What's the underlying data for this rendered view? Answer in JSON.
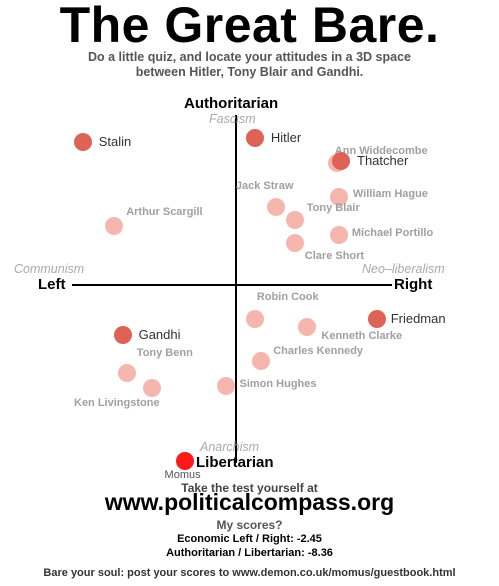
{
  "header": {
    "title": "The Great Bare.",
    "subtitle_line1": "Do a little quiz, and locate your attitudes in a 3D space",
    "subtitle_line2": "between Hitler, Tony Blair and Gandhi."
  },
  "compass": {
    "top": "Authoritarian",
    "top_ideology": "Fascism",
    "bottom": "Libertarian",
    "bottom_ideology": "Anarchism",
    "left": "Left",
    "left_ideology": "Communism",
    "right": "Right",
    "right_ideology": "Neo–liberalism"
  },
  "colors": {
    "strong": "#dc6355",
    "light": "#f4b3a9",
    "self": "#ff1a1a",
    "strong_text": "#333333",
    "light_text": "#a0a0a0"
  },
  "people": [
    {
      "name": "Stalin",
      "x": -7.3,
      "y": 6.8,
      "style": "strong"
    },
    {
      "name": "Hitler",
      "x": 0.9,
      "y": 7.0,
      "style": "strong"
    },
    {
      "name": "Ann Widdecombe",
      "x": 4.8,
      "y": 5.8,
      "style": "light"
    },
    {
      "name": "Thatcher",
      "x": 5.0,
      "y": 5.9,
      "style": "strong"
    },
    {
      "name": "Jack Straw",
      "x": 1.9,
      "y": 3.7,
      "style": "light"
    },
    {
      "name": "William Hague",
      "x": 4.9,
      "y": 4.2,
      "style": "light"
    },
    {
      "name": "Tony Blair",
      "x": 2.8,
      "y": 3.1,
      "style": "light"
    },
    {
      "name": "Arthur Scargill",
      "x": -5.8,
      "y": 2.8,
      "style": "light"
    },
    {
      "name": "Michael Portillo",
      "x": 4.9,
      "y": 2.4,
      "style": "light"
    },
    {
      "name": "Clare Short",
      "x": 2.8,
      "y": 2.0,
      "style": "light"
    },
    {
      "name": "Robin Cook",
      "x": 0.9,
      "y": -1.6,
      "style": "light"
    },
    {
      "name": "Friedman",
      "x": 6.7,
      "y": -1.6,
      "style": "strong"
    },
    {
      "name": "Kenneth Clarke",
      "x": 3.4,
      "y": -2.0,
      "style": "light"
    },
    {
      "name": "Gandhi",
      "x": -5.4,
      "y": -2.4,
      "style": "strong"
    },
    {
      "name": "Charles Kennedy",
      "x": 1.2,
      "y": -3.6,
      "style": "light"
    },
    {
      "name": "Tony Benn",
      "x": -5.2,
      "y": -4.2,
      "style": "light"
    },
    {
      "name": "Ken Livingstone",
      "x": -4.0,
      "y": -4.9,
      "style": "light"
    },
    {
      "name": "Simon Hughes",
      "x": -0.5,
      "y": -4.8,
      "style": "light"
    },
    {
      "name": "Momus",
      "x": -2.45,
      "y": -8.36,
      "style": "self"
    }
  ],
  "footer": {
    "take_test": "Take the test yourself at",
    "url": "www.politicalcompass.org",
    "my_scores": "My scores?",
    "score_econ": "Economic Left / Right: -2.45",
    "score_auth": "Authoritarian / Libertarian: -8.36",
    "bare_soul": "Bare your soul: post your scores to www.demon.co.uk/momus/guestbook.html"
  }
}
